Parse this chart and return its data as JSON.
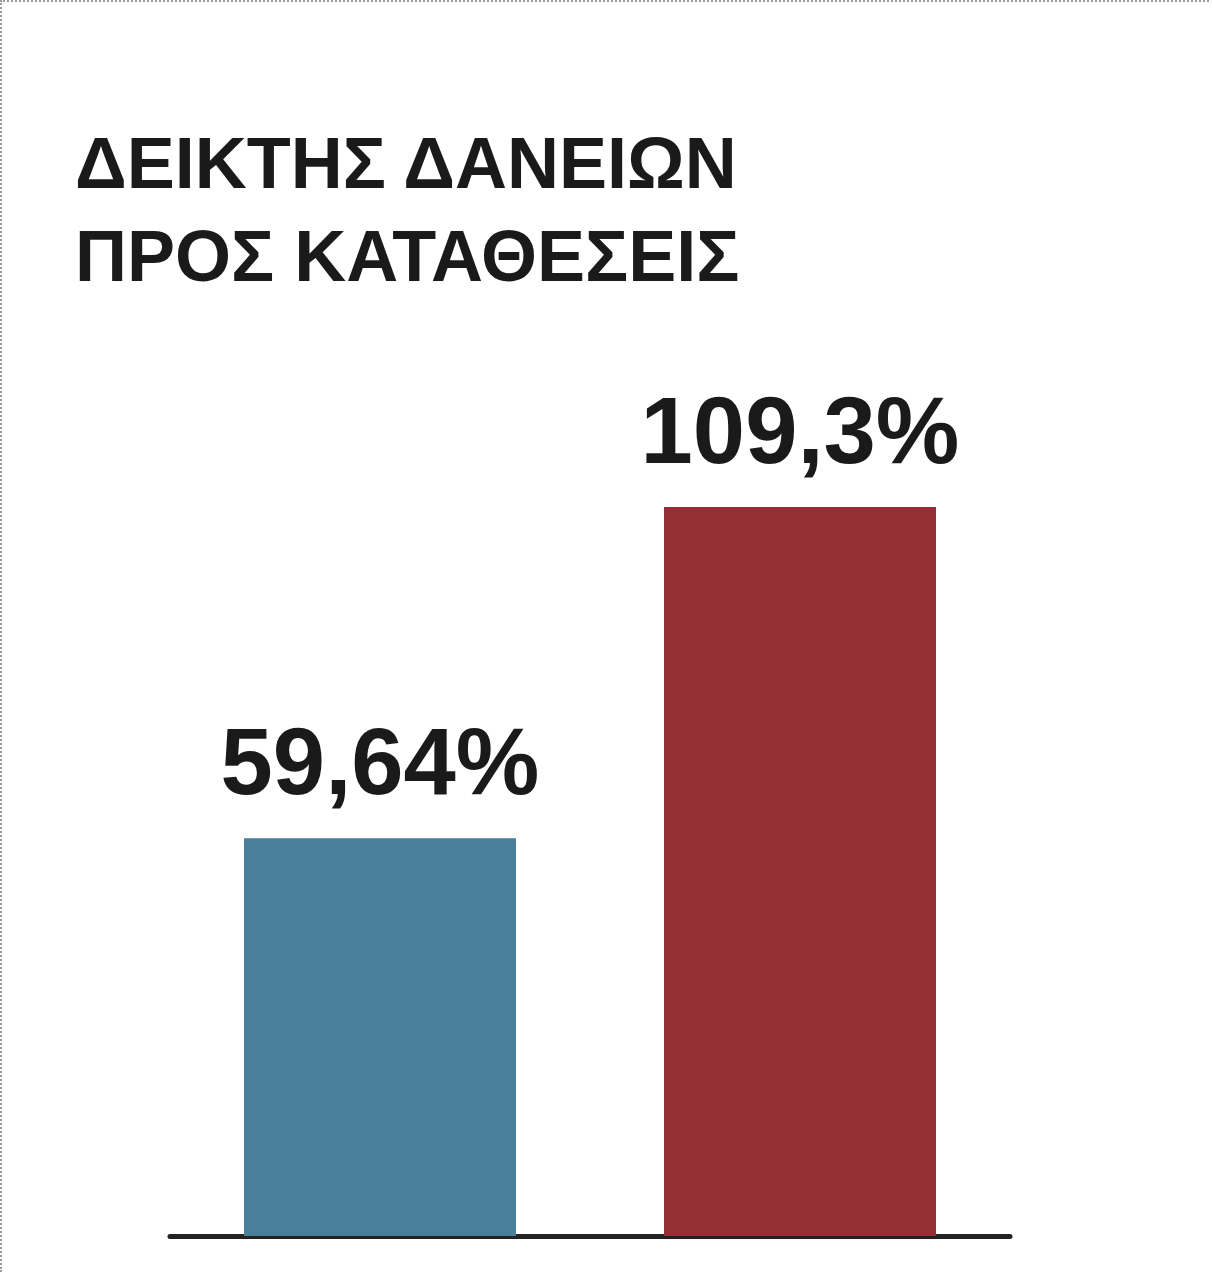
{
  "chart_data": {
    "type": "bar",
    "title": "ΔΕΙΚΤΗΣ ΔΑΝΕΙΩΝ ΠΡΟΣ ΚΑΤΑΘΕΣΕΙΣ",
    "categories": [
      null,
      null
    ],
    "values": [
      59.64,
      109.3
    ],
    "colors": [
      "#4a7f99",
      "#962e36"
    ],
    "value_labels": [
      "59,64%",
      "109,3%"
    ]
  }
}
